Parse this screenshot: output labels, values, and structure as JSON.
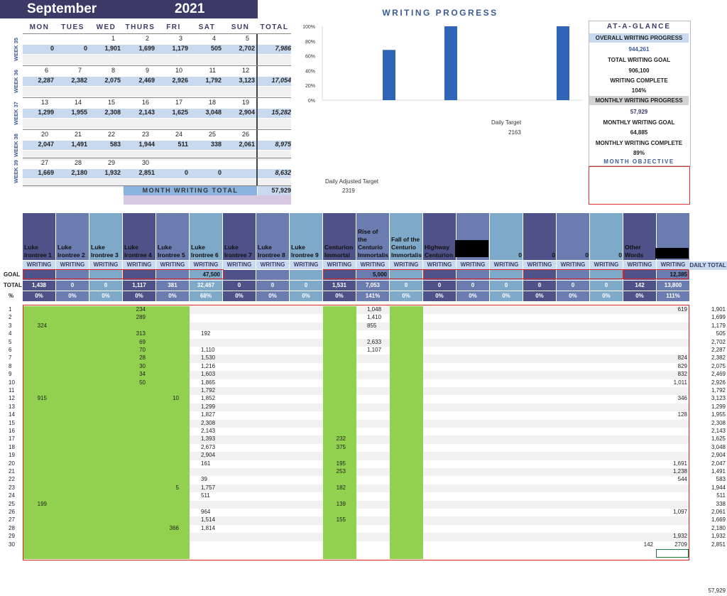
{
  "calendar": {
    "month": "September",
    "year": "2021",
    "days": [
      "MON",
      "TUES",
      "WED",
      "THURS",
      "FRI",
      "SAT",
      "SUN",
      "TOTAL"
    ],
    "weeks": [
      {
        "label": "WEEK 35",
        "dates": [
          "",
          "",
          "1",
          "2",
          "3",
          "4",
          "5"
        ],
        "values": [
          "0",
          "0",
          "1,901",
          "1,699",
          "1,179",
          "505",
          "2,702"
        ],
        "total": "7,986"
      },
      {
        "label": "WEEK 36",
        "dates": [
          "6",
          "7",
          "8",
          "9",
          "10",
          "11",
          "12"
        ],
        "values": [
          "2,287",
          "2,382",
          "2,075",
          "2,469",
          "2,926",
          "1,792",
          "3,123"
        ],
        "total": "17,054"
      },
      {
        "label": "WEEK 37",
        "dates": [
          "13",
          "14",
          "15",
          "16",
          "17",
          "18",
          "19"
        ],
        "values": [
          "1,299",
          "1,955",
          "2,308",
          "2,143",
          "1,625",
          "3,048",
          "2,904"
        ],
        "total": "15,282"
      },
      {
        "label": "WEEK 38",
        "dates": [
          "20",
          "21",
          "22",
          "23",
          "24",
          "25",
          "26"
        ],
        "values": [
          "2,047",
          "1,491",
          "583",
          "1,944",
          "511",
          "338",
          "2,061"
        ],
        "total": "8,975"
      },
      {
        "label": "WEEK 39",
        "dates": [
          "27",
          "28",
          "29",
          "30",
          "",
          "",
          ""
        ],
        "values": [
          "1,669",
          "2,180",
          "1,932",
          "2,851",
          "0",
          "0",
          ""
        ],
        "total": "8,632"
      }
    ],
    "month_total_label": "MONTH WRITING TOTAL",
    "month_total": "57,929"
  },
  "progress": {
    "title": "WRITING PROGRESS",
    "daily_target_label": "Daily Target",
    "daily_target": "2163",
    "daily_adjusted_label": "Daily Adjusted Target",
    "daily_adjusted": "2319"
  },
  "chart_data": {
    "type": "bar",
    "title": "",
    "ylim": [
      0,
      100
    ],
    "yticks": [
      "0%",
      "20%",
      "40%",
      "60%",
      "80%",
      "100%"
    ],
    "categories": [
      "",
      "",
      ""
    ],
    "values": [
      68,
      100,
      100
    ],
    "color": "#2f65b6"
  },
  "glance": {
    "title": "AT-A-GLANCE",
    "overall_label": "OVERALL WRITING PROGRESS",
    "overall_value": "944,261",
    "total_goal_label": "TOTAL WRITING GOAL",
    "total_goal_value": "906,100",
    "complete_label": "WRITING COMPLETE",
    "complete_value": "104%",
    "monthly_label": "MONTHLY WRITING PROGRESS",
    "monthly_value": "57,929",
    "monthly_goal_label": "MONTHLY WRITING GOAL",
    "monthly_goal_value": "64,885",
    "monthly_complete_label": "MONTHLY WRITING COMPLETE",
    "monthly_complete_value": "89%",
    "objective_label": "MONTH OBJECTIVE"
  },
  "tracker": {
    "row_labels": {
      "goal": "GOAL",
      "total": "TOTAL",
      "pct": "%",
      "daily_total": "DAILY TOTAL"
    },
    "columns": [
      {
        "name": "Luke Irontree 1",
        "sub": "WRITING",
        "goal": "",
        "total": "1,438",
        "pct": "0%"
      },
      {
        "name": "Luke Irontree 2",
        "sub": "WRITING",
        "goal": "",
        "total": "0",
        "pct": "0%"
      },
      {
        "name": "Luke Irontree 3",
        "sub": "WRITING",
        "goal": "",
        "total": "0",
        "pct": "0%"
      },
      {
        "name": "Luke Irontree 4",
        "sub": "WRITING",
        "goal": "",
        "total": "1,117",
        "pct": "0%"
      },
      {
        "name": "Luke Irontree 5",
        "sub": "WRITING",
        "goal": "",
        "total": "381",
        "pct": "0%"
      },
      {
        "name": "Luke Irontree 6",
        "sub": "WRITING",
        "goal": "47,500",
        "total": "32,467",
        "pct": "68%"
      },
      {
        "name": "Luke Irontree 7",
        "sub": "WRITING",
        "goal": "",
        "total": "0",
        "pct": "0%"
      },
      {
        "name": "Luke Irontree 8",
        "sub": "WRITING",
        "goal": "",
        "total": "0",
        "pct": "0%"
      },
      {
        "name": "Luke Irontree 9",
        "sub": "WRITING",
        "goal": "",
        "total": "0",
        "pct": "0%"
      },
      {
        "name": "Centurion Immortal",
        "sub": "WRITING",
        "goal": "",
        "total": "1,531",
        "pct": "0%"
      },
      {
        "name": "Rise of the Centurio Immortalis",
        "sub": "WRITING",
        "goal": "5,000",
        "total": "7,053",
        "pct": "141%"
      },
      {
        "name": "Fall of the Centurio Immortalis",
        "sub": "WRITING",
        "goal": "",
        "total": "0",
        "pct": "0%"
      },
      {
        "name": "Highway Centurion",
        "sub": "WRITING",
        "goal": "",
        "total": "0",
        "pct": "0%"
      },
      {
        "name": "",
        "sub": "WRITING",
        "goal": "",
        "total": "0",
        "pct": "0%"
      },
      {
        "name": "0",
        "sub": "WRITING",
        "goal": "",
        "total": "0",
        "pct": "0%"
      },
      {
        "name": "0",
        "sub": "WRITING",
        "goal": "",
        "total": "0",
        "pct": "0%"
      },
      {
        "name": "0",
        "sub": "WRITING",
        "goal": "",
        "total": "0",
        "pct": "0%"
      },
      {
        "name": "0",
        "sub": "WRITING",
        "goal": "",
        "total": "0",
        "pct": "0%"
      },
      {
        "name": "Other Words",
        "sub": "WRITING",
        "goal": "",
        "total": "142",
        "pct": "0%"
      },
      {
        "name": "",
        "sub": "WRITING",
        "goal": "12,385",
        "total": "13,800",
        "pct": "111%"
      }
    ],
    "days": [
      {
        "d": "1",
        "c1": "",
        "c4": "234",
        "c5": "",
        "c6": "",
        "c10": "",
        "c11": "1,048",
        "c19": "",
        "c20": "619",
        "t": "1,901"
      },
      {
        "d": "2",
        "c1": "",
        "c4": "289",
        "c5": "",
        "c6": "",
        "c10": "",
        "c11": "1,410",
        "c19": "",
        "c20": "",
        "t": "1,699"
      },
      {
        "d": "3",
        "c1": "324",
        "c4": "",
        "c5": "",
        "c6": "",
        "c10": "",
        "c11": "855",
        "c19": "",
        "c20": "",
        "t": "1,179"
      },
      {
        "d": "4",
        "c1": "",
        "c4": "313",
        "c5": "",
        "c6": "192",
        "c10": "",
        "c11": "",
        "c19": "",
        "c20": "",
        "t": "505"
      },
      {
        "d": "5",
        "c1": "",
        "c4": "69",
        "c5": "",
        "c6": "",
        "c10": "",
        "c11": "2,633",
        "c19": "",
        "c20": "",
        "t": "2,702"
      },
      {
        "d": "6",
        "c1": "",
        "c4": "70",
        "c5": "",
        "c6": "1,110",
        "c10": "",
        "c11": "1,107",
        "c19": "",
        "c20": "",
        "t": "2,287"
      },
      {
        "d": "7",
        "c1": "",
        "c4": "28",
        "c5": "",
        "c6": "1,530",
        "c10": "",
        "c11": "",
        "c19": "",
        "c20": "824",
        "t": "2,382"
      },
      {
        "d": "8",
        "c1": "",
        "c4": "30",
        "c5": "",
        "c6": "1,216",
        "c10": "",
        "c11": "",
        "c19": "",
        "c20": "829",
        "t": "2,075"
      },
      {
        "d": "9",
        "c1": "",
        "c4": "34",
        "c5": "",
        "c6": "1,603",
        "c10": "",
        "c11": "",
        "c19": "",
        "c20": "832",
        "t": "2,469"
      },
      {
        "d": "10",
        "c1": "",
        "c4": "50",
        "c5": "",
        "c6": "1,865",
        "c10": "",
        "c11": "",
        "c19": "",
        "c20": "1,011",
        "t": "2,926"
      },
      {
        "d": "11",
        "c1": "",
        "c4": "",
        "c5": "",
        "c6": "1,792",
        "c10": "",
        "c11": "",
        "c19": "",
        "c20": "",
        "t": "1,792"
      },
      {
        "d": "12",
        "c1": "915",
        "c4": "",
        "c5": "10",
        "c6": "1,852",
        "c10": "",
        "c11": "",
        "c19": "",
        "c20": "346",
        "t": "3,123"
      },
      {
        "d": "13",
        "c1": "",
        "c4": "",
        "c5": "",
        "c6": "1,299",
        "c10": "",
        "c11": "",
        "c19": "",
        "c20": "",
        "t": "1,299"
      },
      {
        "d": "14",
        "c1": "",
        "c4": "",
        "c5": "",
        "c6": "1,827",
        "c10": "",
        "c11": "",
        "c19": "",
        "c20": "128",
        "t": "1,955"
      },
      {
        "d": "15",
        "c1": "",
        "c4": "",
        "c5": "",
        "c6": "2,308",
        "c10": "",
        "c11": "",
        "c19": "",
        "c20": "",
        "t": "2,308"
      },
      {
        "d": "16",
        "c1": "",
        "c4": "",
        "c5": "",
        "c6": "2,143",
        "c10": "",
        "c11": "",
        "c19": "",
        "c20": "",
        "t": "2,143"
      },
      {
        "d": "17",
        "c1": "",
        "c4": "",
        "c5": "",
        "c6": "1,393",
        "c10": "232",
        "c11": "",
        "c19": "",
        "c20": "",
        "t": "1,625"
      },
      {
        "d": "18",
        "c1": "",
        "c4": "",
        "c5": "",
        "c6": "2,673",
        "c10": "375",
        "c11": "",
        "c19": "",
        "c20": "",
        "t": "3,048"
      },
      {
        "d": "19",
        "c1": "",
        "c4": "",
        "c5": "",
        "c6": "2,904",
        "c10": "",
        "c11": "",
        "c19": "",
        "c20": "",
        "t": "2,904"
      },
      {
        "d": "20",
        "c1": "",
        "c4": "",
        "c5": "",
        "c6": "161",
        "c10": "195",
        "c11": "",
        "c19": "",
        "c20": "1,691",
        "t": "2,047"
      },
      {
        "d": "21",
        "c1": "",
        "c4": "",
        "c5": "",
        "c6": "",
        "c10": "253",
        "c11": "",
        "c19": "",
        "c20": "1,238",
        "t": "1,491"
      },
      {
        "d": "22",
        "c1": "",
        "c4": "",
        "c5": "",
        "c6": "39",
        "c10": "",
        "c11": "",
        "c19": "",
        "c20": "544",
        "t": "583"
      },
      {
        "d": "23",
        "c1": "",
        "c4": "",
        "c5": "5",
        "c6": "1,757",
        "c10": "182",
        "c11": "",
        "c19": "",
        "c20": "",
        "t": "1,944"
      },
      {
        "d": "24",
        "c1": "",
        "c4": "",
        "c5": "",
        "c6": "511",
        "c10": "",
        "c11": "",
        "c19": "",
        "c20": "",
        "t": "511"
      },
      {
        "d": "25",
        "c1": "199",
        "c4": "",
        "c5": "",
        "c6": "",
        "c10": "139",
        "c11": "",
        "c19": "",
        "c20": "",
        "t": "338"
      },
      {
        "d": "26",
        "c1": "",
        "c4": "",
        "c5": "",
        "c6": "964",
        "c10": "",
        "c11": "",
        "c19": "",
        "c20": "1,097",
        "t": "2,061"
      },
      {
        "d": "27",
        "c1": "",
        "c4": "",
        "c5": "",
        "c6": "1,514",
        "c10": "155",
        "c11": "",
        "c19": "",
        "c20": "",
        "t": "1,669"
      },
      {
        "d": "28",
        "c1": "",
        "c4": "",
        "c5": "366",
        "c6": "1,814",
        "c10": "",
        "c11": "",
        "c19": "",
        "c20": "",
        "t": "2,180"
      },
      {
        "d": "29",
        "c1": "",
        "c4": "",
        "c5": "",
        "c6": "",
        "c10": "",
        "c11": "",
        "c19": "",
        "c20": "1,932",
        "t": "1,932"
      },
      {
        "d": "30",
        "c1": "",
        "c4": "",
        "c5": "",
        "c6": "",
        "c10": "",
        "c11": "",
        "c19": "142",
        "c20": "2709",
        "t": "2,851"
      }
    ],
    "grand_total": "57,929"
  }
}
